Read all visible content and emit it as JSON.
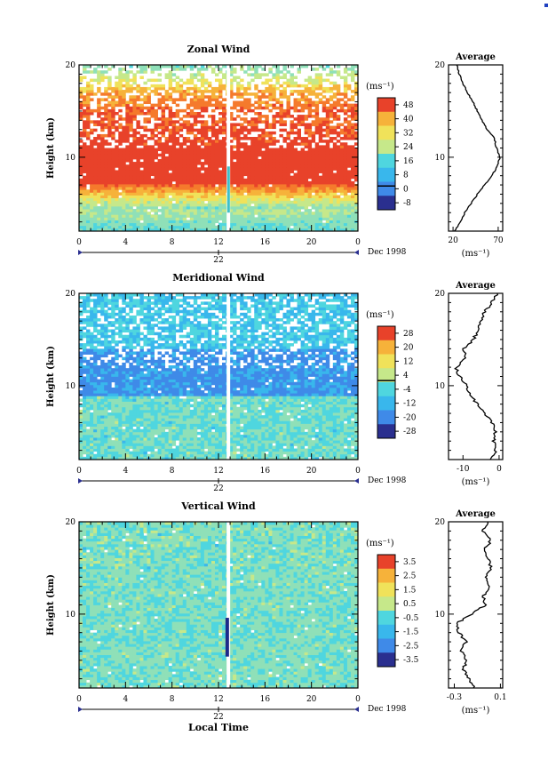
{
  "figure": {
    "date_label": "Dec 1998",
    "day_label": "22",
    "xlabel": "Local Time",
    "corner_color": "#2040c0"
  },
  "chart_data": [
    {
      "type": "heatmap",
      "title": "Zonal Wind",
      "ylabel": "Height (km)",
      "yticks": [
        10,
        20
      ],
      "ylim": [
        2,
        20
      ],
      "xticks": [
        "0",
        "4",
        "8",
        "12",
        "16",
        "20",
        "0"
      ],
      "xlim": [
        0,
        24
      ],
      "colorbar": {
        "unit": "(ms⁻¹)",
        "ticks": [
          "48",
          "40",
          "32",
          "24",
          "16",
          "8",
          "0",
          "-8"
        ],
        "range": [
          -12,
          52
        ],
        "zero_line": true
      },
      "profile": {
        "title": "Average",
        "xticks": [
          "20",
          "70"
        ],
        "xlim": [
          15,
          75
        ],
        "xlabel": "(ms⁻¹)",
        "yticks": [
          "20",
          "10"
        ],
        "z": [
          2,
          3,
          4,
          5,
          6,
          7,
          8,
          9,
          10,
          11,
          12,
          13,
          14,
          15,
          16,
          17,
          18,
          19,
          20
        ],
        "values": [
          22,
          28,
          33,
          40,
          47,
          55,
          63,
          69,
          72,
          68,
          66,
          58,
          52,
          47,
          42,
          36,
          31,
          27,
          24
        ]
      }
    },
    {
      "type": "heatmap",
      "title": "Meridional Wind",
      "ylabel": "Height (km)",
      "yticks": [
        10,
        20
      ],
      "ylim": [
        2,
        20
      ],
      "xticks": [
        "0",
        "4",
        "8",
        "12",
        "16",
        "20",
        "0"
      ],
      "xlim": [
        0,
        24
      ],
      "colorbar": {
        "unit": "(ms⁻¹)",
        "ticks": [
          "28",
          "20",
          "12",
          "4",
          "-4",
          "-12",
          "-20",
          "-28"
        ],
        "range": [
          -32,
          32
        ],
        "zero_line": true
      },
      "profile": {
        "title": "Average",
        "xticks": [
          "-10",
          "0"
        ],
        "xlim": [
          -14,
          1
        ],
        "xlabel": "(ms⁻¹)",
        "yticks": [
          "20",
          "10"
        ],
        "z": [
          2,
          3,
          4,
          5,
          6,
          7,
          8,
          9,
          10,
          11,
          12,
          13,
          14,
          15,
          16,
          17,
          18,
          19,
          20
        ],
        "values": [
          -2,
          -1,
          -1.5,
          -1,
          -2,
          -4,
          -6,
          -8,
          -9,
          -11,
          -12,
          -9,
          -10,
          -7,
          -6,
          -5,
          -4,
          -2,
          -0.5
        ]
      }
    },
    {
      "type": "heatmap",
      "title": "Vertical Wind",
      "ylabel": "Height (km)",
      "yticks": [
        10,
        20
      ],
      "ylim": [
        2,
        20
      ],
      "xticks": [
        "0",
        "4",
        "8",
        "12",
        "16",
        "20",
        "0"
      ],
      "xlim": [
        0,
        24
      ],
      "colorbar": {
        "unit": "(ms⁻¹)",
        "ticks": [
          "3.5",
          "2.5",
          "1.5",
          "0.5",
          "-0.5",
          "-1.5",
          "-2.5",
          "-3.5"
        ],
        "range": [
          -4,
          4
        ],
        "zero_line": false
      },
      "profile": {
        "title": "Average",
        "xticks": [
          "-0.3",
          "0.1"
        ],
        "xlim": [
          -0.35,
          0.12
        ],
        "xlabel": "(ms⁻¹)",
        "yticks": [
          "20",
          "10"
        ],
        "z": [
          2,
          3,
          4,
          5,
          6,
          7,
          8,
          9,
          10,
          11,
          12,
          13,
          14,
          15,
          16,
          17,
          18,
          19,
          20
        ],
        "values": [
          -0.12,
          -0.17,
          -0.22,
          -0.2,
          -0.24,
          -0.2,
          -0.26,
          -0.28,
          -0.15,
          -0.03,
          -0.05,
          0.01,
          -0.02,
          0.02,
          0.0,
          -0.04,
          0.02,
          -0.05,
          -0.01
        ]
      }
    }
  ]
}
